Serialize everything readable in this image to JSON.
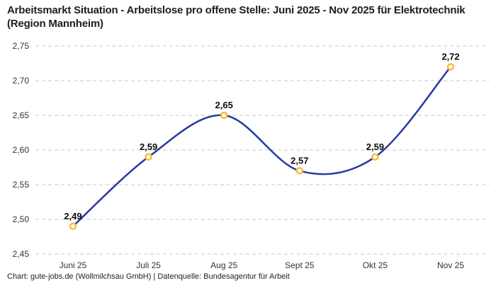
{
  "header": {
    "title": "Arbeitsmarkt Situation - Arbeitslose pro offene Stelle: Juni 2025 - Nov 2025 für Elektrotechnik (Region Mannheim)"
  },
  "footer": {
    "credit": "Chart: gute-jobs.de (Wollmilchsau GmbH) | Datenquelle: Bundesagentur für Arbeit"
  },
  "chart_data": {
    "type": "line",
    "title": "Arbeitsmarkt Situation - Arbeitslose pro offene Stelle: Juni 2025 - Nov 2025 für Elektrotechnik (Region Mannheim)",
    "xlabel": "",
    "ylabel": "",
    "categories": [
      "Juni 25",
      "Juli 25",
      "Aug 25",
      "Sept 25",
      "Okt 25",
      "Nov 25"
    ],
    "values": [
      2.49,
      2.59,
      2.65,
      2.57,
      2.59,
      2.72
    ],
    "value_labels": [
      "2,49",
      "2,59",
      "2,65",
      "2,57",
      "2,59",
      "2,72"
    ],
    "y_ticks": [
      {
        "value": 2.75,
        "label": "2,75"
      },
      {
        "value": 2.7,
        "label": "2,70"
      },
      {
        "value": 2.65,
        "label": "2,65"
      },
      {
        "value": 2.6,
        "label": "2,60"
      },
      {
        "value": 2.55,
        "label": "2,55"
      },
      {
        "value": 2.5,
        "label": "2,50"
      },
      {
        "value": 2.45,
        "label": "2,45"
      }
    ],
    "ylim": [
      2.45,
      2.75
    ],
    "grid": "horizontal-dashed",
    "legend_position": "none",
    "line_style": "smooth",
    "colors": {
      "line": "#2639a3",
      "marker_stroke": "#f7bd3a",
      "marker_fill": "#ffffff",
      "grid": "#c9c9c9",
      "axis_text": "#333333",
      "value_label": "#0c0c0c"
    }
  }
}
